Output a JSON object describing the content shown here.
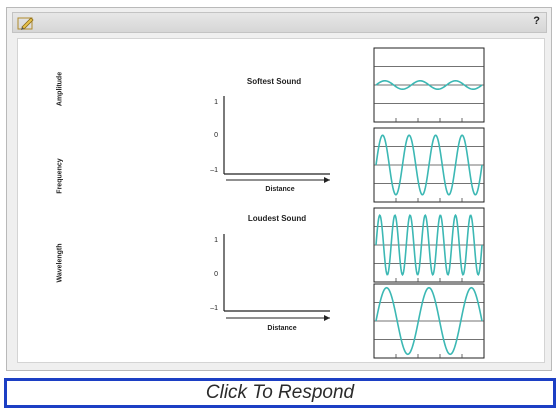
{
  "titlebar": {
    "help_label": "?",
    "tool_icon": "pencil-icon"
  },
  "choices": [
    "Amplitude",
    "Frequency",
    "Wavelength"
  ],
  "graphs": [
    {
      "title": "Softest Sound",
      "y_ticks": [
        "1",
        "0",
        "–1"
      ],
      "x_label": "Distance"
    },
    {
      "title": "Loudest Sound",
      "y_ticks": [
        "1",
        "0",
        "–1"
      ],
      "x_label": "Distance"
    }
  ],
  "wave_options": [
    {
      "amplitude": 0.12,
      "cycles": 3
    },
    {
      "amplitude": 0.85,
      "cycles": 4
    },
    {
      "amplitude": 0.85,
      "cycles": 7
    },
    {
      "amplitude": 0.95,
      "cycles": 2.5
    }
  ],
  "wave_color": "#3cb8b4",
  "respond_label": "Click To Respond"
}
